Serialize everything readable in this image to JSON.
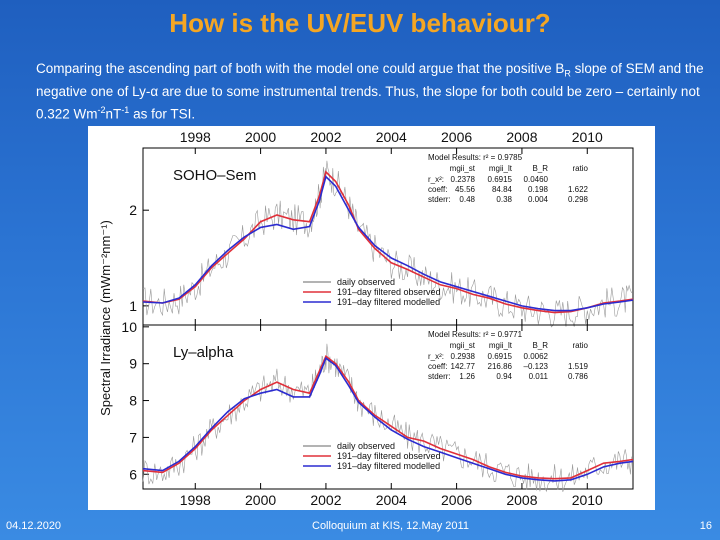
{
  "slide": {
    "title": "How is the UV/EUV behaviour?",
    "intro": {
      "p1": "Comparing the ascending part of both with the model one could argue that the positive  B",
      "p1_sub": "R",
      "p2": " slope of SEM and the negative one of Ly-",
      "alpha": "α",
      "p3": " are due to some instrumental trends. Thus, the  slope for both could be zero – certainly not 0.322 Wm",
      "sup1": "-2",
      "p4": "nT",
      "sup2": "-1",
      "p5": " as for TSI."
    },
    "footer": {
      "date": "04.12.2020",
      "event": "Colloquium at KIS, 12.May 2011",
      "page": "16"
    }
  },
  "chart_data": [
    {
      "type": "line",
      "panel_label": "SOHO–Sem",
      "ylabel": "Spectral Irradiance (mWm⁻²nm⁻¹)",
      "x_ticks": [
        "1998",
        "2000",
        "2002",
        "2004",
        "2006",
        "2008",
        "2010"
      ],
      "xlim": [
        1996.4,
        2011.4
      ],
      "ylim": [
        0.8,
        2.65
      ],
      "y_ticks": [
        "1",
        "2"
      ],
      "y_tick_values": [
        1,
        2
      ],
      "legend": [
        "daily observed",
        "191–day filtered observed",
        "191–day filtered modelled"
      ],
      "series_colors": {
        "daily": "#9a9a9a",
        "observed": "#e0303a",
        "modelled": "#2b2bd0"
      },
      "model_results": {
        "heading": "Model Results: r² = 0.9785",
        "cols": [
          "mgii_st",
          "mgii_lt",
          "B_R",
          "ratio"
        ],
        "rows": [
          {
            "label": "r_x²:",
            "vals": [
              "0.2378",
              "0.6915",
              "0.0460",
              ""
            ]
          },
          {
            "label": "coeff:",
            "vals": [
              "45.56",
              "84.84",
              "0.198",
              "1.622"
            ]
          },
          {
            "label": "stderr:",
            "vals": [
              "0.48",
              "0.38",
              "0.004",
              "0.298"
            ]
          }
        ]
      },
      "x": [
        1996.4,
        1997.0,
        1997.5,
        1998.0,
        1998.5,
        1999.0,
        1999.5,
        2000.0,
        2000.5,
        2001.0,
        2001.5,
        2001.8,
        2002.0,
        2002.3,
        2002.7,
        2003.0,
        2003.5,
        2004.0,
        2004.5,
        2005.0,
        2005.5,
        2006.0,
        2006.5,
        2007.0,
        2007.5,
        2008.0,
        2008.5,
        2009.0,
        2009.5,
        2010.0,
        2010.5,
        2011.0,
        2011.4
      ],
      "observed": [
        1.05,
        1.03,
        1.07,
        1.2,
        1.4,
        1.55,
        1.7,
        1.88,
        1.95,
        1.9,
        1.88,
        2.15,
        2.4,
        2.3,
        2.05,
        1.8,
        1.6,
        1.45,
        1.38,
        1.3,
        1.22,
        1.18,
        1.12,
        1.08,
        1.02,
        0.98,
        0.95,
        0.93,
        0.94,
        0.98,
        1.03,
        1.05,
        1.07
      ],
      "modelled": [
        1.04,
        1.03,
        1.08,
        1.22,
        1.42,
        1.58,
        1.72,
        1.82,
        1.85,
        1.8,
        1.83,
        2.1,
        2.35,
        2.25,
        2.0,
        1.82,
        1.63,
        1.5,
        1.42,
        1.33,
        1.25,
        1.2,
        1.15,
        1.1,
        1.05,
        1.0,
        0.97,
        0.95,
        0.95,
        0.98,
        1.02,
        1.04,
        1.06
      ]
    },
    {
      "type": "line",
      "panel_label": "Ly–alpha",
      "x_ticks": [
        "1998",
        "2000",
        "2002",
        "2004",
        "2006",
        "2008",
        "2010"
      ],
      "xlim": [
        1996.4,
        2011.4
      ],
      "ylim": [
        5.6,
        10.05
      ],
      "y_ticks": [
        "6",
        "7",
        "8",
        "9",
        "10"
      ],
      "y_tick_values": [
        6,
        7,
        8,
        9,
        10
      ],
      "legend": [
        "daily observed",
        "191–day filtered observed",
        "191–day filtered modelled"
      ],
      "model_results": {
        "heading": "Model Results: r² = 0.9771",
        "cols": [
          "mgii_st",
          "mgii_lt",
          "B_R",
          "ratio"
        ],
        "rows": [
          {
            "label": "r_x²:",
            "vals": [
              "0.2938",
              "0.6915",
              "0.0062",
              ""
            ]
          },
          {
            "label": "coeff:",
            "vals": [
              "142.77",
              "216.86",
              "–0.123",
              "1.519"
            ]
          },
          {
            "label": "stderr:",
            "vals": [
              "1.26",
              "0.94",
              "0.011",
              "0.786"
            ]
          }
        ]
      },
      "x": [
        1996.4,
        1997.0,
        1997.5,
        1998.0,
        1998.5,
        1999.0,
        1999.5,
        2000.0,
        2000.5,
        2001.0,
        2001.5,
        2001.8,
        2002.0,
        2002.3,
        2002.7,
        2003.0,
        2003.5,
        2004.0,
        2004.5,
        2005.0,
        2005.5,
        2006.0,
        2006.5,
        2007.0,
        2007.5,
        2008.0,
        2008.5,
        2009.0,
        2009.5,
        2010.0,
        2010.5,
        2011.0,
        2011.4
      ],
      "observed": [
        6.1,
        6.05,
        6.3,
        6.7,
        7.2,
        7.6,
        8.0,
        8.3,
        8.5,
        8.3,
        8.2,
        8.8,
        9.2,
        9.0,
        8.5,
        8.0,
        7.6,
        7.3,
        7.0,
        6.9,
        6.7,
        6.55,
        6.4,
        6.2,
        6.05,
        5.95,
        5.9,
        5.88,
        5.9,
        6.1,
        6.3,
        6.35,
        6.4
      ],
      "modelled": [
        6.15,
        6.1,
        6.35,
        6.75,
        7.25,
        7.7,
        8.05,
        8.2,
        8.3,
        8.1,
        8.1,
        8.7,
        9.15,
        8.95,
        8.4,
        7.95,
        7.55,
        7.2,
        6.95,
        6.75,
        6.6,
        6.45,
        6.3,
        6.15,
        6.0,
        5.9,
        5.85,
        5.82,
        5.85,
        6.0,
        6.2,
        6.3,
        6.35
      ]
    }
  ]
}
